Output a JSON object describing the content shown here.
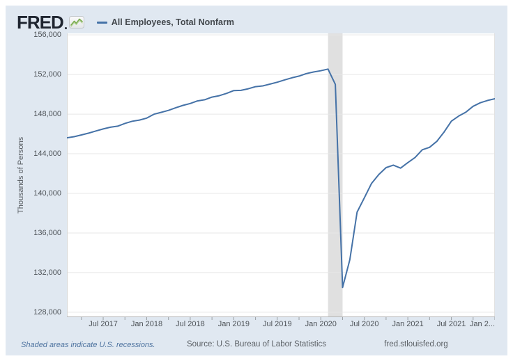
{
  "header": {
    "logo": "FRED",
    "sparkline_icon": "green-sparkline-icon"
  },
  "legend": {
    "label": "All Employees, Total Nonfarm"
  },
  "footer": {
    "note": "Shaded areas indicate U.S. recessions.",
    "source": "Source: U.S. Bureau of Labor Statistics",
    "url": "fred.stlouisfed.org"
  },
  "colors": {
    "line": "#4572a7",
    "panel_bg": "#e0e8f1",
    "plot_bg": "#ffffff",
    "gridline": "#e7e7e7",
    "recession_band": "#e0e0e0",
    "axis": "#b5b5b5",
    "tick": "#9aa0a5",
    "link_blue": "#4f74a0"
  },
  "chart_data": {
    "type": "line",
    "title": "All Employees, Total Nonfarm",
    "xlabel": "",
    "ylabel": "Thousands of Persons",
    "frequency": "monthly",
    "x_start": "2017-02",
    "x_end": "2022-01",
    "ylim": [
      127500,
      156150
    ],
    "y_ticks": [
      128000,
      132000,
      136000,
      140000,
      144000,
      148000,
      152000,
      156000
    ],
    "x_ticks": [
      {
        "label": "Jul 2017",
        "month_index": 5,
        "align": "center"
      },
      {
        "label": "Jan 2018",
        "month_index": 11,
        "align": "center"
      },
      {
        "label": "Jul 2018",
        "month_index": 17,
        "align": "center"
      },
      {
        "label": "Jan 2019",
        "month_index": 23,
        "align": "center"
      },
      {
        "label": "Jul 2019",
        "month_index": 29,
        "align": "center"
      },
      {
        "label": "Jan 2020",
        "month_index": 35,
        "align": "center"
      },
      {
        "label": "Jul 2020",
        "month_index": 41,
        "align": "center"
      },
      {
        "label": "Jan 2021",
        "month_index": 47,
        "align": "center"
      },
      {
        "label": "Jul 2021",
        "month_index": 53,
        "align": "center"
      },
      {
        "label": "Jan 2...",
        "month_index": 59,
        "align": "right"
      }
    ],
    "minor_tick_every_months": 3,
    "grid": "horizontal",
    "legend_position": "top-left",
    "recession_bands": [
      {
        "start": "2020-02",
        "end": "2020-04"
      }
    ],
    "series": [
      {
        "name": "All Employees, Total Nonfarm",
        "color": "#4572a7",
        "dates": [
          "2017-02",
          "2017-03",
          "2017-04",
          "2017-05",
          "2017-06",
          "2017-07",
          "2017-08",
          "2017-09",
          "2017-10",
          "2017-11",
          "2017-12",
          "2018-01",
          "2018-02",
          "2018-03",
          "2018-04",
          "2018-05",
          "2018-06",
          "2018-07",
          "2018-08",
          "2018-09",
          "2018-10",
          "2018-11",
          "2018-12",
          "2019-01",
          "2019-02",
          "2019-03",
          "2019-04",
          "2019-05",
          "2019-06",
          "2019-07",
          "2019-08",
          "2019-09",
          "2019-10",
          "2019-11",
          "2019-12",
          "2020-01",
          "2020-02",
          "2020-03",
          "2020-04",
          "2020-05",
          "2020-06",
          "2020-07",
          "2020-08",
          "2020-09",
          "2020-10",
          "2020-11",
          "2020-12",
          "2021-01",
          "2021-02",
          "2021-03",
          "2021-04",
          "2021-05",
          "2021-06",
          "2021-07",
          "2021-08",
          "2021-09",
          "2021-10",
          "2021-11",
          "2021-12",
          "2022-01"
        ],
        "values": [
          145600,
          145720,
          145900,
          146080,
          146300,
          146500,
          146680,
          146780,
          147060,
          147280,
          147400,
          147600,
          147990,
          148180,
          148380,
          148640,
          148880,
          149070,
          149330,
          149450,
          149720,
          149860,
          150090,
          150380,
          150400,
          150560,
          150770,
          150850,
          151030,
          151220,
          151450,
          151660,
          151840,
          152090,
          152250,
          152380,
          152550,
          151000,
          130500,
          133300,
          138100,
          139550,
          141010,
          141900,
          142600,
          142850,
          142550,
          143100,
          143620,
          144400,
          144650,
          145250,
          146200,
          147290,
          147800,
          148200,
          148790,
          149150,
          149380,
          149550
        ]
      }
    ]
  }
}
